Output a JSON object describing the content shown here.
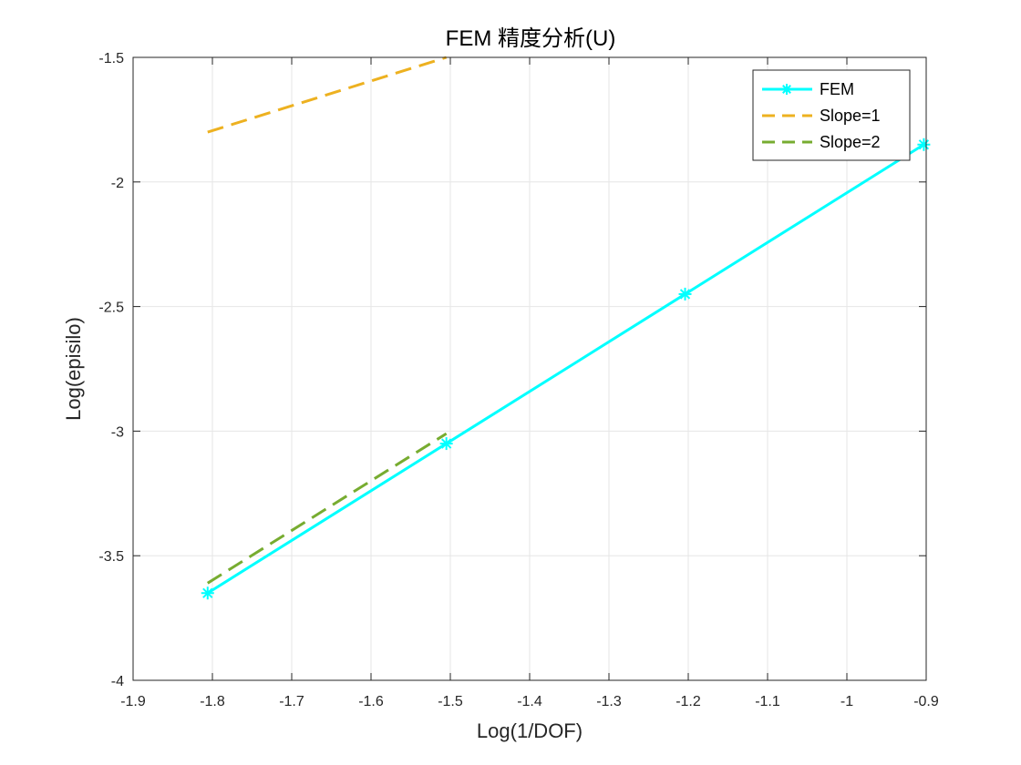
{
  "chart_data": {
    "type": "line",
    "title": "FEM 精度分析(U)",
    "xlabel": "Log(1/DOF)",
    "ylabel": "Log(episilo)",
    "xlim": [
      -1.9,
      -0.9
    ],
    "ylim": [
      -4,
      -1.5
    ],
    "xticks": [
      -1.9,
      -1.8,
      -1.7,
      -1.6,
      -1.5,
      -1.4,
      -1.3,
      -1.2,
      -1.1,
      -1,
      -0.9
    ],
    "xtick_labels": [
      "-1.9",
      "-1.8",
      "-1.7",
      "-1.6",
      "-1.5",
      "-1.4",
      "-1.3",
      "-1.2",
      "-1.1",
      "-1",
      "-0.9"
    ],
    "yticks": [
      -4,
      -3.5,
      -3,
      -2.5,
      -2,
      -1.5
    ],
    "ytick_labels": [
      "-4",
      "-3.5",
      "-3",
      "-2.5",
      "-2",
      "-1.5"
    ],
    "grid": true,
    "legend_position": "top-right",
    "series": [
      {
        "name": "FEM",
        "x": [
          -1.806,
          -1.505,
          -1.204,
          -0.903
        ],
        "y": [
          -3.65,
          -3.05,
          -2.45,
          -1.85
        ],
        "color": "#00FFFF",
        "line_style": "solid",
        "marker": "asterisk"
      },
      {
        "name": "Slope=1",
        "x": [
          -1.806,
          -1.505
        ],
        "y": [
          -1.8,
          -1.5
        ],
        "color": "#EDB120",
        "line_style": "dashed",
        "marker": "none"
      },
      {
        "name": "Slope=2",
        "x": [
          -1.806,
          -1.505
        ],
        "y": [
          -3.61,
          -3.01
        ],
        "color": "#77AC30",
        "line_style": "dashed",
        "marker": "none"
      }
    ]
  }
}
